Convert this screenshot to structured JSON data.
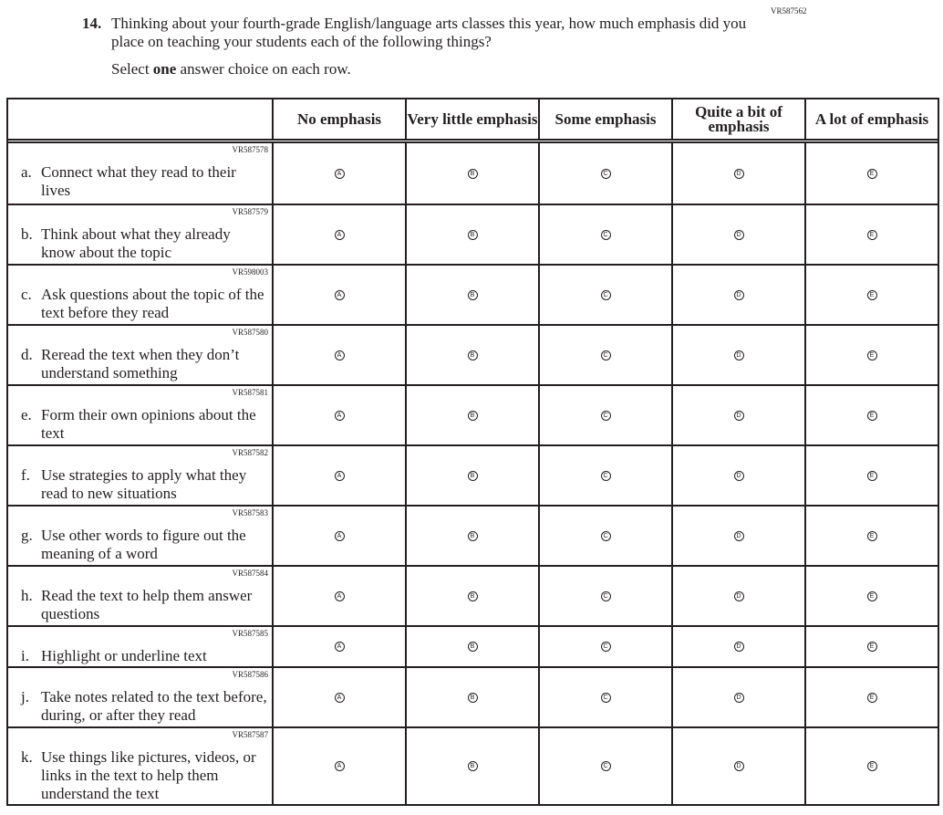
{
  "question": {
    "code": "VR587562",
    "number": "14.",
    "text": "Thinking about your fourth-grade English/language arts classes this year, how much emphasis did you place on teaching your students each of the following things?",
    "instruction_pre": "Select ",
    "instruction_bold": "one",
    "instruction_post": " answer choice on each row."
  },
  "columns": [
    "No emphasis",
    "Very little emphasis",
    "Some emphasis",
    "Quite a bit of emphasis",
    "A lot of emphasis"
  ],
  "bubbles": [
    "A",
    "B",
    "C",
    "D",
    "E"
  ],
  "rows": [
    {
      "code": "VR587578",
      "letter": "a.",
      "text": "Connect what they read to their lives"
    },
    {
      "code": "VR587579",
      "letter": "b.",
      "text": "Think about what they already know about the topic"
    },
    {
      "code": "VR598003",
      "letter": "c.",
      "text": "Ask questions about the topic of the text before they read"
    },
    {
      "code": "VR587580",
      "letter": "d.",
      "text": "Reread the text when they don’t understand something"
    },
    {
      "code": "VR587581",
      "letter": "e.",
      "text": "Form their own opinions about the text"
    },
    {
      "code": "VR587582",
      "letter": "f.",
      "text": "Use strategies to apply what they read to new situations"
    },
    {
      "code": "VR587583",
      "letter": "g.",
      "text": "Use other words to figure out the meaning of a word"
    },
    {
      "code": "VR587584",
      "letter": "h.",
      "text": "Read the text to help them answer questions"
    },
    {
      "code": "VR587585",
      "letter": "i.",
      "text": "Highlight or underline text"
    },
    {
      "code": "VR587586",
      "letter": "j.",
      "text": "Take notes related to the text before, during, or after they read"
    },
    {
      "code": "VR587587",
      "letter": "k.",
      "text": "Use things like pictures, videos, or links in the text to help them understand the text"
    }
  ]
}
